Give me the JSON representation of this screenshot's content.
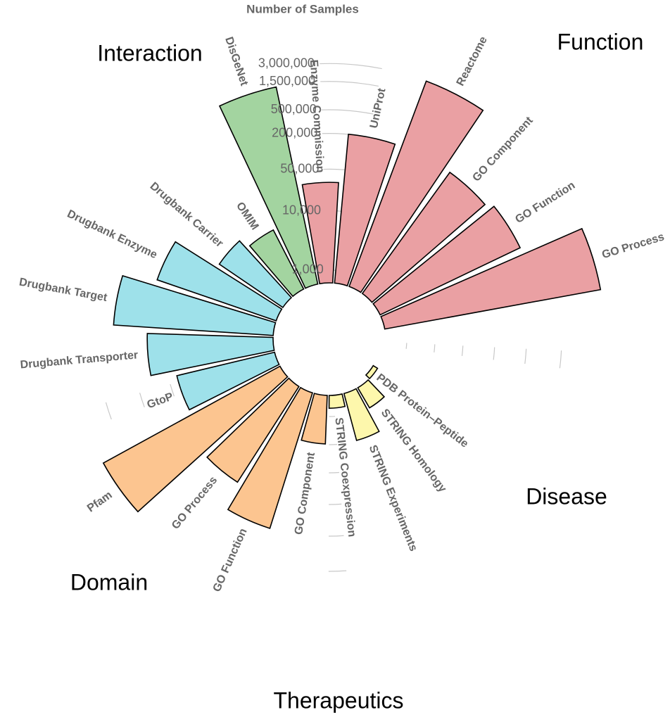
{
  "chart_data": {
    "type": "bar",
    "subtype": "circular-bar",
    "scale": "log",
    "axis_title": "Number of Samples",
    "ticks": [
      {
        "value": 1000,
        "label": "1,000"
      },
      {
        "value": 10000,
        "label": "10,000"
      },
      {
        "value": 50000,
        "label": "50,000"
      },
      {
        "value": 200000,
        "label": "200,000"
      },
      {
        "value": 500000,
        "label": "500,000"
      },
      {
        "value": 1500000,
        "label": "1,500,000"
      },
      {
        "value": 3000000,
        "label": "3,000,000"
      }
    ],
    "groups": [
      {
        "name": "Function",
        "color": "#eaa0a3"
      },
      {
        "name": "Disease",
        "color": "#a3d4a0"
      },
      {
        "name": "Therapeutics",
        "color": "#9ee1ea"
      },
      {
        "name": "Domain",
        "color": "#fcc590"
      },
      {
        "name": "Interaction",
        "color": "#fdf7ac"
      }
    ],
    "bars": [
      {
        "label": "GO Process",
        "group": "Function",
        "value": 3000000
      },
      {
        "label": "GO Function",
        "group": "Function",
        "value": 250000
      },
      {
        "label": "GO Component",
        "group": "Function",
        "value": 200000
      },
      {
        "label": "Reactome",
        "group": "Function",
        "value": 3000000
      },
      {
        "label": "UniProt",
        "group": "Function",
        "value": 200000
      },
      {
        "label": "Enzyme Commission",
        "group": "Function",
        "value": 30000
      },
      {
        "label": "DisGeNet",
        "group": "Disease",
        "value": 1500000
      },
      {
        "label": "OMIM",
        "group": "Disease",
        "value": 8000
      },
      {
        "label": "Drugbank Carrier",
        "group": "Therapeutics",
        "value": 12000
      },
      {
        "label": "Drugbank Enzyme",
        "group": "Therapeutics",
        "value": 80000
      },
      {
        "label": "Drugbank Target",
        "group": "Therapeutics",
        "value": 300000
      },
      {
        "label": "Drugbank Transporter",
        "group": "Therapeutics",
        "value": 80000
      },
      {
        "label": "GtoP",
        "group": "Therapeutics",
        "value": 30000
      },
      {
        "label": "Pfam",
        "group": "Domain",
        "value": 1500000
      },
      {
        "label": "GO Process",
        "group": "Domain",
        "value": 50000
      },
      {
        "label": "GO Function",
        "group": "Domain",
        "value": 150000
      },
      {
        "label": "GO Component",
        "group": "Domain",
        "value": 4000
      },
      {
        "label": "STRING Coexpression",
        "group": "Interaction",
        "value": 1000
      },
      {
        "label": "STRING Experiments",
        "group": "Interaction",
        "value": 4000
      },
      {
        "label": "STRING Homology",
        "group": "Interaction",
        "value": 1500
      },
      {
        "label": "PDB Protein–Peptide",
        "group": "Interaction",
        "value": 500
      }
    ]
  }
}
